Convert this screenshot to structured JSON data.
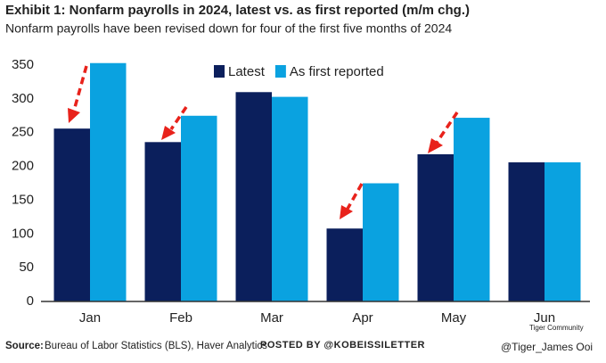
{
  "chart_data": {
    "type": "bar",
    "title": "Exhibit 1: Nonfarm payrolls in 2024, latest vs. as first reported (m/m chg.)",
    "subtitle": "Nonfarm payrolls have been revised down for four of the first five months of 2024",
    "categories": [
      "Jan",
      "Feb",
      "Mar",
      "Apr",
      "May",
      "Jun"
    ],
    "series": [
      {
        "name": "Latest",
        "color": "#0b1f5c",
        "values": [
          256,
          236,
          310,
          108,
          218,
          206
        ]
      },
      {
        "name": "As first reported",
        "color": "#0aa2e0",
        "values": [
          353,
          275,
          303,
          175,
          272,
          206
        ]
      }
    ],
    "ylim": [
      0,
      350
    ],
    "yticks": [
      0,
      50,
      100,
      150,
      200,
      250,
      300,
      350
    ],
    "grid": false,
    "source_label": "Source:",
    "source": "Bureau of Labor Statistics (BLS), Haver Analytics"
  },
  "watermarks": [
    "POSTED BY @KOBEISSILETTER",
    "Tiger Community",
    "@Tiger_James Ooi"
  ]
}
